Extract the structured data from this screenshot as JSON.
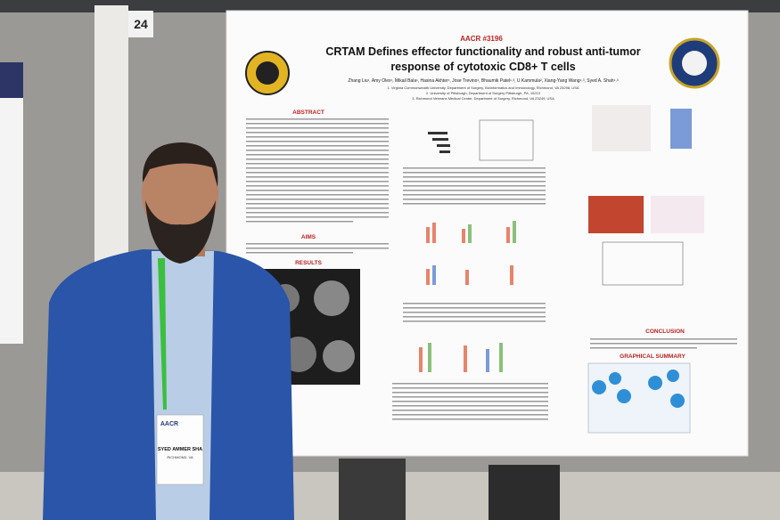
{
  "board_number": "24",
  "poster": {
    "abstract_id": "AACR #3196",
    "title_lines": [
      "CRTAM Defines effector functionality and robust anti-tumor",
      "response of cytotoxic CD8+ T cells"
    ],
    "authors": "Zhang Liu¹, Amy Olex¹, Mikail Bala¹, Hasina Akhter¹, Jose Trevino¹, Bhaumik Patel¹˒³, U Kammula², Xiang-Yang Wang¹˒³, Syed A. Shah¹˒³",
    "affiliations": [
      "1. Virginia Commonwealth University, Department of Surgery, Bioinformatics and Immunology, Richmond, VA 23298, USA",
      "2. University of Pittsburgh, Department of Surgery Pittsburgh, PA, 15213",
      "3. Richmond Veterans Medical Center, Department of Surgery, Richmond, VA 23249, USA"
    ],
    "sections": {
      "abstract": "ABSTRACT",
      "aims": "AIMS",
      "results": "RESULTS",
      "conclusion": "CONCLUSION",
      "graphical_summary": "GRAPHICAL SUMMARY"
    }
  },
  "badge": {
    "event": "AACR",
    "name": "SYED AMMER SHA",
    "city": "RICHMOND, VA"
  }
}
